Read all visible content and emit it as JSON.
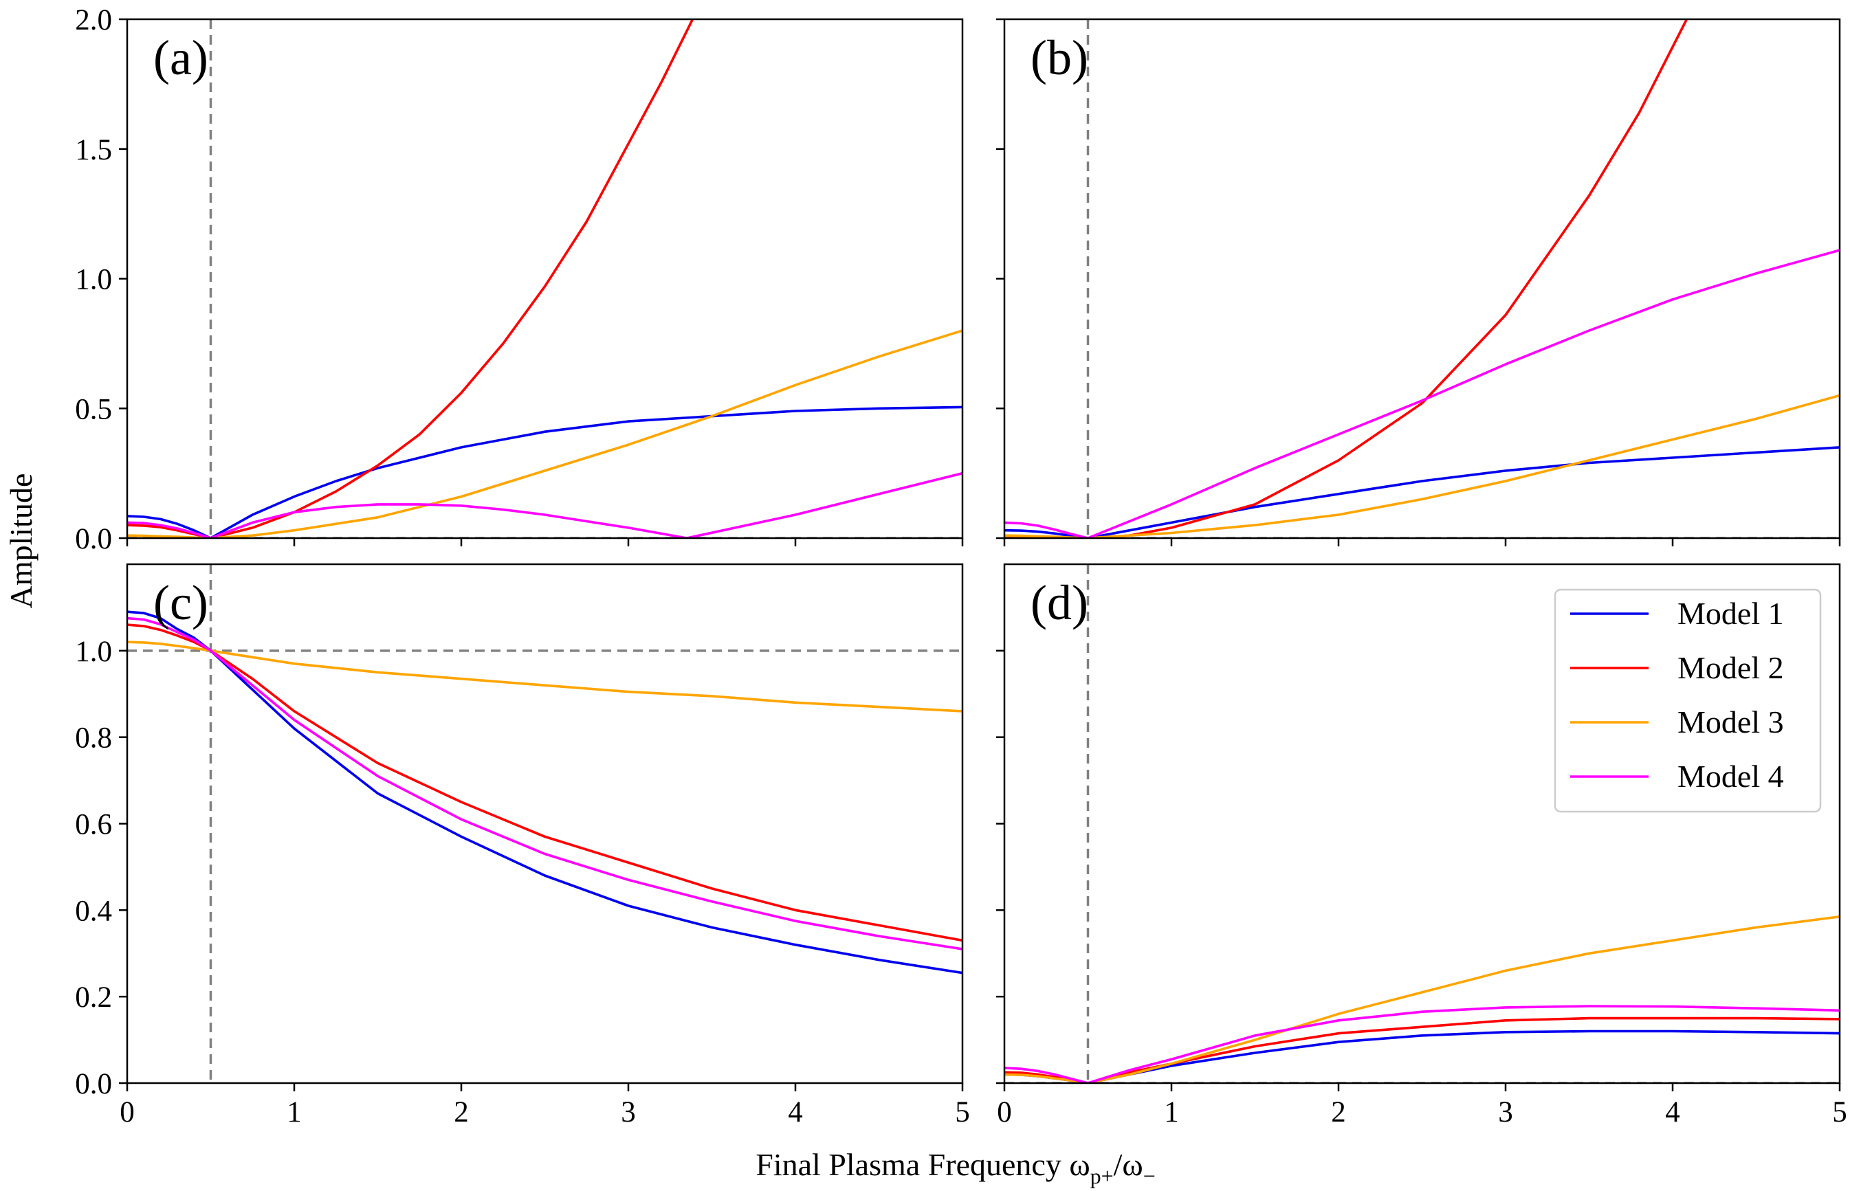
{
  "figure": {
    "xlabel": "Final Plasma Frequency ω",
    "xlabel_sub": "p+",
    "xlabel_slash": "/ω",
    "xlabel_sub2": "−",
    "ylabel": "Amplitude"
  },
  "legend": {
    "entries": [
      {
        "name": "Model 1",
        "color": "#0000ee"
      },
      {
        "name": "Model 2",
        "color": "#ff0000"
      },
      {
        "name": "Model 3",
        "color": "#ffa500"
      },
      {
        "name": "Model 4",
        "color": "#ff00ff"
      }
    ]
  },
  "chart_data": [
    {
      "type": "line",
      "panel": "(a)",
      "xlim": [
        0,
        5
      ],
      "ylim": [
        0,
        2.0
      ],
      "xticks": [
        0,
        1,
        2,
        3,
        4,
        5
      ],
      "yticks": [
        0.0,
        0.5,
        1.0,
        1.5,
        2.0
      ],
      "ytick_labels": [
        "0.0",
        "0.5",
        "1.0",
        "1.5",
        "2.0"
      ],
      "show_xtick_labels": false,
      "show_ytick_labels": true,
      "ref_vline": 0.5,
      "ref_hline": 0.0,
      "series": [
        {
          "name": "Model 1",
          "color": "#0000ee",
          "x": [
            0,
            0.1,
            0.2,
            0.3,
            0.4,
            0.5,
            0.75,
            1,
            1.25,
            1.5,
            2,
            2.5,
            3,
            3.5,
            4,
            4.5,
            5
          ],
          "y": [
            0.085,
            0.082,
            0.073,
            0.055,
            0.03,
            0.0,
            0.09,
            0.16,
            0.22,
            0.27,
            0.35,
            0.41,
            0.45,
            0.47,
            0.49,
            0.5,
            0.505
          ]
        },
        {
          "name": "Model 2",
          "color": "#ff0000",
          "x": [
            0,
            0.1,
            0.2,
            0.3,
            0.4,
            0.5,
            0.75,
            1,
            1.25,
            1.5,
            1.75,
            2,
            2.25,
            2.5,
            2.75,
            3,
            3.2,
            3.4
          ],
          "y": [
            0.05,
            0.048,
            0.042,
            0.03,
            0.015,
            0.0,
            0.04,
            0.1,
            0.18,
            0.28,
            0.4,
            0.56,
            0.75,
            0.97,
            1.22,
            1.52,
            1.76,
            2.02
          ]
        },
        {
          "name": "Model 3",
          "color": "#ffa500",
          "x": [
            0,
            0.1,
            0.2,
            0.3,
            0.4,
            0.5,
            0.75,
            1,
            1.5,
            2,
            2.5,
            3,
            3.5,
            4,
            4.5,
            5
          ],
          "y": [
            0.01,
            0.009,
            0.007,
            0.005,
            0.002,
            0.0,
            0.01,
            0.03,
            0.08,
            0.16,
            0.26,
            0.36,
            0.47,
            0.59,
            0.7,
            0.8
          ]
        },
        {
          "name": "Model 4",
          "color": "#ff00ff",
          "x": [
            0,
            0.1,
            0.2,
            0.3,
            0.4,
            0.5,
            0.75,
            1,
            1.25,
            1.5,
            1.75,
            2,
            2.25,
            2.5,
            2.75,
            3,
            3.35,
            4,
            4.5,
            5
          ],
          "y": [
            0.06,
            0.058,
            0.05,
            0.037,
            0.02,
            0.0,
            0.06,
            0.1,
            0.12,
            0.13,
            0.13,
            0.125,
            0.11,
            0.09,
            0.065,
            0.04,
            0.0,
            0.09,
            0.17,
            0.25
          ]
        }
      ]
    },
    {
      "type": "line",
      "panel": "(b)",
      "xlim": [
        0,
        5
      ],
      "ylim": [
        0,
        2.0
      ],
      "xticks": [
        0,
        1,
        2,
        3,
        4,
        5
      ],
      "yticks": [
        0.0,
        0.5,
        1.0,
        1.5,
        2.0
      ],
      "ytick_labels": [
        "0.0",
        "0.5",
        "1.0",
        "1.5",
        "2.0"
      ],
      "show_xtick_labels": false,
      "show_ytick_labels": false,
      "ref_vline": 0.5,
      "ref_hline": 0.0,
      "series": [
        {
          "name": "Model 1",
          "color": "#0000ee",
          "x": [
            0,
            0.1,
            0.2,
            0.3,
            0.4,
            0.5,
            0.75,
            1,
            1.5,
            2,
            2.5,
            3,
            3.5,
            4,
            4.5,
            5
          ],
          "y": [
            0.03,
            0.029,
            0.025,
            0.018,
            0.009,
            0.0,
            0.03,
            0.06,
            0.12,
            0.17,
            0.22,
            0.26,
            0.29,
            0.31,
            0.33,
            0.35
          ]
        },
        {
          "name": "Model 2",
          "color": "#ff0000",
          "x": [
            0,
            0.1,
            0.2,
            0.3,
            0.4,
            0.5,
            0.75,
            1,
            1.5,
            2,
            2.5,
            3,
            3.5,
            3.8,
            4.1
          ],
          "y": [
            0.0,
            0.0,
            0.0,
            0.0,
            0.0,
            0.0,
            0.01,
            0.04,
            0.13,
            0.3,
            0.52,
            0.86,
            1.32,
            1.64,
            2.02
          ]
        },
        {
          "name": "Model 3",
          "color": "#ffa500",
          "x": [
            0,
            0.1,
            0.2,
            0.3,
            0.4,
            0.5,
            0.75,
            1,
            1.5,
            2,
            2.5,
            3,
            3.5,
            4,
            4.5,
            5
          ],
          "y": [
            0.01,
            0.009,
            0.007,
            0.005,
            0.002,
            0.0,
            0.01,
            0.02,
            0.05,
            0.09,
            0.15,
            0.22,
            0.3,
            0.38,
            0.46,
            0.55
          ]
        },
        {
          "name": "Model 4",
          "color": "#ff00ff",
          "x": [
            0,
            0.1,
            0.2,
            0.3,
            0.4,
            0.5,
            1,
            1.5,
            2,
            2.5,
            3,
            3.5,
            4,
            4.5,
            5
          ],
          "y": [
            0.06,
            0.057,
            0.048,
            0.033,
            0.016,
            0.0,
            0.13,
            0.27,
            0.4,
            0.53,
            0.67,
            0.8,
            0.92,
            1.02,
            1.11
          ]
        }
      ]
    },
    {
      "type": "line",
      "panel": "(c)",
      "xlim": [
        0,
        5
      ],
      "ylim": [
        0,
        1.2
      ],
      "xticks": [
        0,
        1,
        2,
        3,
        4,
        5
      ],
      "yticks": [
        0.0,
        0.2,
        0.4,
        0.6,
        0.8,
        1.0
      ],
      "ytick_labels": [
        "0.0",
        "0.2",
        "0.4",
        "0.6",
        "0.8",
        "1.0"
      ],
      "show_xtick_labels": true,
      "show_ytick_labels": true,
      "ref_vline": 0.5,
      "ref_hline": 1.0,
      "series": [
        {
          "name": "Model 1",
          "color": "#0000ee",
          "x": [
            0,
            0.1,
            0.2,
            0.3,
            0.4,
            0.5,
            0.75,
            1,
            1.5,
            2,
            2.5,
            3,
            3.5,
            4,
            4.5,
            5
          ],
          "y": [
            1.09,
            1.087,
            1.075,
            1.05,
            1.03,
            1.0,
            0.91,
            0.82,
            0.67,
            0.57,
            0.48,
            0.41,
            0.36,
            0.32,
            0.285,
            0.255
          ]
        },
        {
          "name": "Model 2",
          "color": "#ff0000",
          "x": [
            0,
            0.1,
            0.2,
            0.3,
            0.4,
            0.5,
            0.75,
            1,
            1.5,
            2,
            2.5,
            3,
            3.5,
            4,
            4.5,
            5
          ],
          "y": [
            1.06,
            1.057,
            1.048,
            1.035,
            1.02,
            1.0,
            0.935,
            0.86,
            0.74,
            0.65,
            0.57,
            0.51,
            0.45,
            0.4,
            0.365,
            0.33
          ]
        },
        {
          "name": "Model 3",
          "color": "#ffa500",
          "x": [
            0,
            0.1,
            0.2,
            0.3,
            0.4,
            0.5,
            0.75,
            1,
            1.5,
            2,
            2.5,
            3,
            3.5,
            4,
            4.5,
            5
          ],
          "y": [
            1.02,
            1.019,
            1.016,
            1.011,
            1.006,
            1.0,
            0.985,
            0.97,
            0.95,
            0.935,
            0.92,
            0.905,
            0.895,
            0.88,
            0.87,
            0.86
          ]
        },
        {
          "name": "Model 4",
          "color": "#ff00ff",
          "x": [
            0,
            0.1,
            0.2,
            0.3,
            0.4,
            0.5,
            0.75,
            1,
            1.5,
            2,
            2.5,
            3,
            3.5,
            4,
            4.5,
            5
          ],
          "y": [
            1.075,
            1.072,
            1.061,
            1.043,
            1.025,
            1.0,
            0.92,
            0.84,
            0.71,
            0.61,
            0.53,
            0.47,
            0.42,
            0.375,
            0.34,
            0.31
          ]
        }
      ]
    },
    {
      "type": "line",
      "panel": "(d)",
      "xlim": [
        0,
        5
      ],
      "ylim": [
        0,
        1.2
      ],
      "xticks": [
        0,
        1,
        2,
        3,
        4,
        5
      ],
      "yticks": [
        0.0,
        0.2,
        0.4,
        0.6,
        0.8,
        1.0
      ],
      "ytick_labels": [
        "0.0",
        "0.2",
        "0.4",
        "0.6",
        "0.8",
        "1.0"
      ],
      "show_xtick_labels": true,
      "show_ytick_labels": false,
      "ref_vline": 0.5,
      "ref_hline": 0.0,
      "series": [
        {
          "name": "Model 1",
          "color": "#0000ee",
          "x": [
            0,
            0.1,
            0.2,
            0.3,
            0.4,
            0.5,
            0.75,
            1,
            1.5,
            2,
            2.5,
            3,
            3.5,
            4,
            4.5,
            5
          ],
          "y": [
            0.02,
            0.019,
            0.016,
            0.011,
            0.006,
            0.0,
            0.02,
            0.04,
            0.07,
            0.095,
            0.11,
            0.118,
            0.12,
            0.12,
            0.118,
            0.115
          ]
        },
        {
          "name": "Model 2",
          "color": "#ff0000",
          "x": [
            0,
            0.1,
            0.2,
            0.3,
            0.4,
            0.5,
            0.75,
            1,
            1.5,
            2,
            2.5,
            3,
            3.5,
            4,
            4.5,
            5
          ],
          "y": [
            0.025,
            0.024,
            0.02,
            0.014,
            0.007,
            0.0,
            0.025,
            0.045,
            0.085,
            0.115,
            0.13,
            0.145,
            0.15,
            0.15,
            0.15,
            0.148
          ]
        },
        {
          "name": "Model 3",
          "color": "#ffa500",
          "x": [
            0,
            0.1,
            0.2,
            0.3,
            0.4,
            0.5,
            0.75,
            1,
            1.5,
            2,
            2.5,
            3,
            3.5,
            4,
            4.5,
            5
          ],
          "y": [
            0.02,
            0.019,
            0.016,
            0.011,
            0.006,
            0.0,
            0.02,
            0.045,
            0.1,
            0.16,
            0.21,
            0.26,
            0.3,
            0.33,
            0.36,
            0.385
          ]
        },
        {
          "name": "Model 4",
          "color": "#ff00ff",
          "x": [
            0,
            0.1,
            0.2,
            0.3,
            0.4,
            0.5,
            0.75,
            1,
            1.5,
            2,
            2.5,
            3,
            3.5,
            4,
            4.5,
            5
          ],
          "y": [
            0.035,
            0.033,
            0.028,
            0.02,
            0.01,
            0.0,
            0.03,
            0.055,
            0.11,
            0.145,
            0.165,
            0.175,
            0.178,
            0.177,
            0.173,
            0.168
          ]
        }
      ]
    }
  ]
}
